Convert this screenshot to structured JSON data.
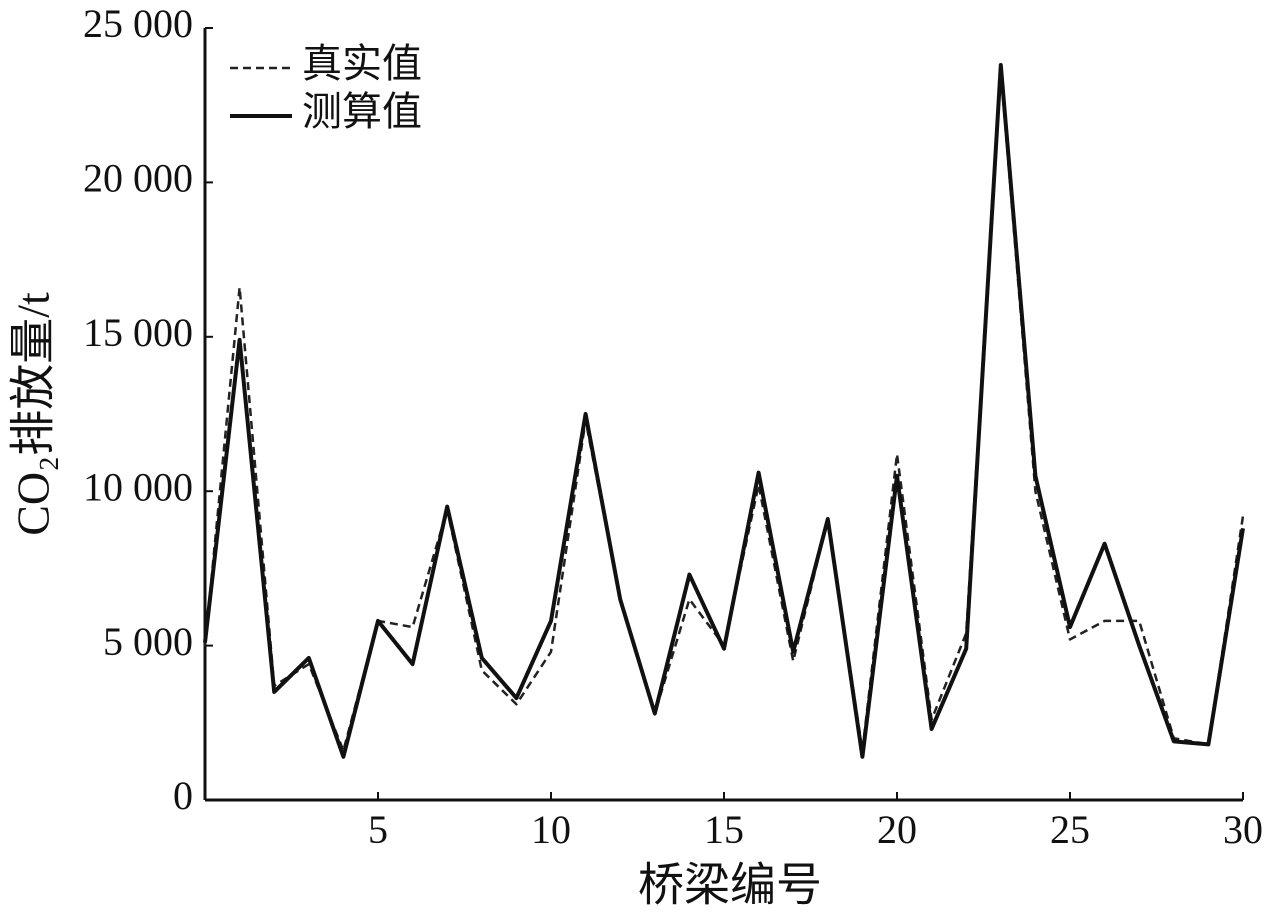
{
  "chart_data": {
    "type": "line",
    "x_label": "桥梁编号",
    "y_label": "CO₂排放量/t",
    "x": [
      0,
      1,
      2,
      3,
      4,
      5,
      6,
      7,
      8,
      9,
      10,
      11,
      12,
      13,
      14,
      15,
      16,
      17,
      18,
      19,
      20,
      21,
      22,
      23,
      24,
      25,
      26,
      27,
      28,
      29,
      30
    ],
    "series": [
      {
        "name": "真实值",
        "color": "#222222",
        "style": "dashed",
        "values": [
          5000,
          16600,
          3700,
          4400,
          1600,
          5800,
          5600,
          9400,
          4200,
          3100,
          4800,
          12300,
          6500,
          2800,
          6500,
          5000,
          10200,
          4500,
          9100,
          1600,
          11200,
          2600,
          5400,
          23600,
          10000,
          5200,
          5800,
          5800,
          2000,
          1800,
          9200
        ]
      },
      {
        "name": "测算值",
        "color": "#111111",
        "style": "solid",
        "values": [
          5100,
          14900,
          3500,
          4600,
          1400,
          5800,
          4400,
          9500,
          4600,
          3300,
          5800,
          12500,
          6500,
          2800,
          7300,
          4900,
          10600,
          4800,
          9100,
          1400,
          10500,
          2300,
          4900,
          23800,
          10500,
          5600,
          8300,
          5000,
          1900,
          1800,
          8800
        ]
      }
    ],
    "xlim": [
      0,
      30
    ],
    "xticks": [
      5,
      10,
      15,
      20,
      25,
      30
    ],
    "ylim": [
      0,
      25000
    ],
    "yticks": [
      0,
      {
        "value": 5000,
        "label": "5 000"
      },
      {
        "value": 10000,
        "label": "10 000"
      },
      {
        "value": 15000,
        "label": "15 000"
      },
      {
        "value": 20000,
        "label": "20 000"
      },
      {
        "value": 25000,
        "label": "25 000"
      }
    ],
    "legend": "upper-left",
    "grid": false
  }
}
